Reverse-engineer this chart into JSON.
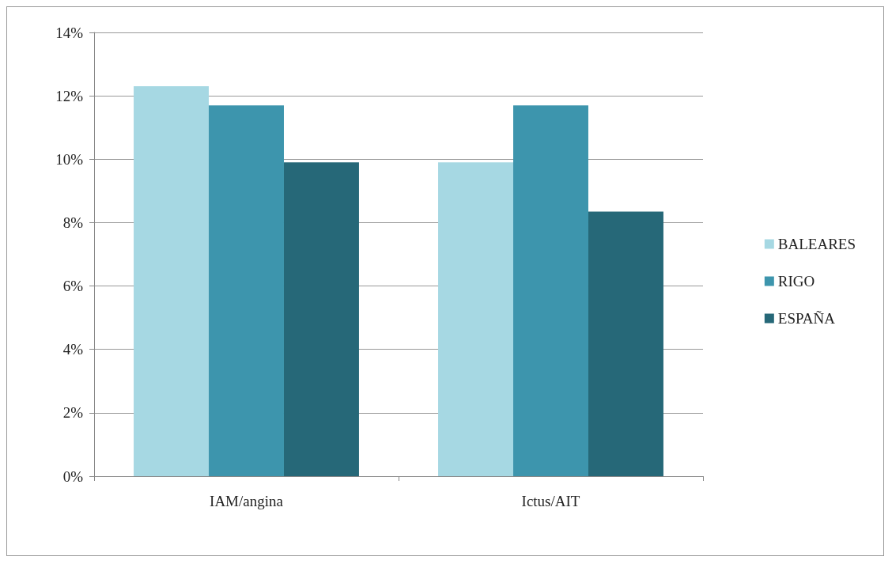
{
  "chart_data": {
    "type": "bar",
    "categories": [
      "IAM/angina",
      "Ictus/AIT"
    ],
    "series": [
      {
        "name": "BALEARES",
        "color": "#a6d8e3",
        "values": [
          12.3,
          9.9
        ]
      },
      {
        "name": "RIGO",
        "color": "#3d95ad",
        "values": [
          11.7,
          11.7
        ]
      },
      {
        "name": "ESPAÑA",
        "color": "#266878",
        "values": [
          9.9,
          8.35
        ]
      }
    ],
    "ylim": [
      0,
      14
    ],
    "yticks": [
      {
        "value": 0,
        "label": "0%"
      },
      {
        "value": 2,
        "label": "2%"
      },
      {
        "value": 4,
        "label": "4%"
      },
      {
        "value": 6,
        "label": "6%"
      },
      {
        "value": 8,
        "label": "8%"
      },
      {
        "value": 10,
        "label": "10%"
      },
      {
        "value": 12,
        "label": "12%"
      },
      {
        "value": 14,
        "label": "14%"
      }
    ],
    "grid": "y",
    "legend": "right"
  }
}
